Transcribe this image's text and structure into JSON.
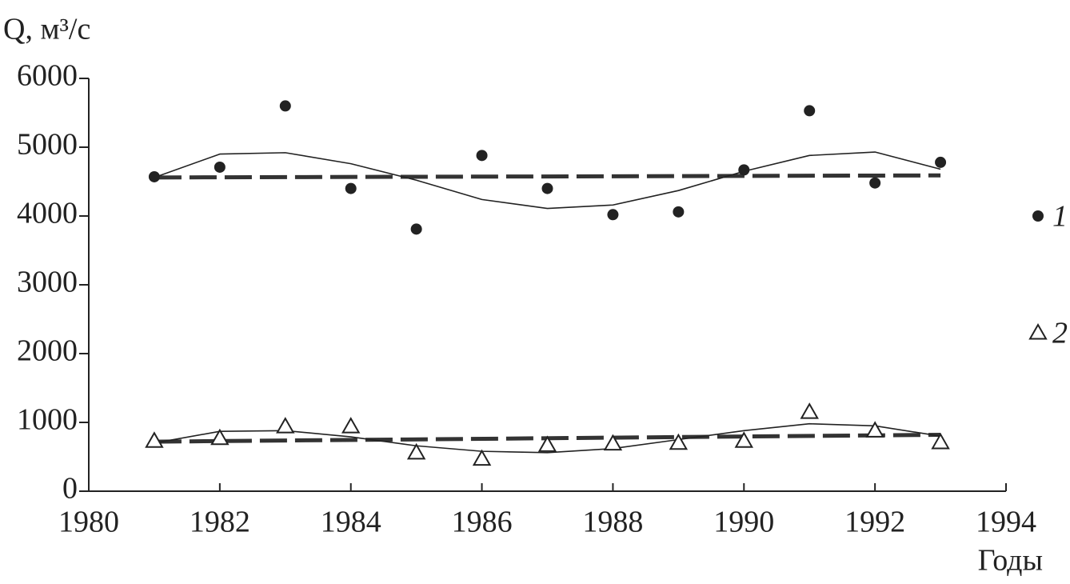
{
  "chart_data": {
    "type": "scatter",
    "y_label": "Q, м³/с",
    "x_label": "Годы",
    "x": [
      1981,
      1982,
      1983,
      1984,
      1985,
      1986,
      1987,
      1988,
      1989,
      1990,
      1991,
      1992,
      1993
    ],
    "series": [
      {
        "name": "1",
        "marker": "circle",
        "color": "#222222",
        "values": [
          4570,
          4710,
          5600,
          4400,
          3810,
          4880,
          4400,
          4020,
          4060,
          4670,
          5530,
          4480,
          4780
        ]
      },
      {
        "name": "2",
        "marker": "triangle",
        "color": "#222222",
        "values": [
          730,
          770,
          940,
          940,
          560,
          470,
          670,
          690,
          700,
          730,
          1150,
          880,
          710
        ]
      }
    ],
    "trends": [
      {
        "style": "dashed",
        "x": [
          1981,
          1993
        ],
        "values": [
          4560,
          4590
        ]
      },
      {
        "style": "dashed",
        "x": [
          1981,
          1993
        ],
        "values": [
          720,
          820
        ]
      },
      {
        "style": "solid",
        "x": [
          1981,
          1982,
          1983,
          1984,
          1985,
          1986,
          1987,
          1988,
          1989,
          1990,
          1991,
          1992,
          1993
        ],
        "values": [
          4560,
          4900,
          4920,
          4760,
          4520,
          4240,
          4110,
          4160,
          4370,
          4650,
          4880,
          4930,
          4680
        ]
      },
      {
        "style": "solid",
        "x": [
          1981,
          1982,
          1983,
          1984,
          1985,
          1986,
          1987,
          1988,
          1989,
          1990,
          1991,
          1992,
          1993
        ],
        "values": [
          700,
          870,
          880,
          790,
          660,
          580,
          560,
          620,
          750,
          880,
          980,
          950,
          800
        ]
      }
    ],
    "xlim": [
      1980,
      1994
    ],
    "xticks": [
      1980,
      1982,
      1984,
      1986,
      1988,
      1990,
      1992,
      1994
    ],
    "ylim": [
      0,
      6000
    ],
    "yticks": [
      0,
      1000,
      2000,
      3000,
      4000,
      5000,
      6000
    ],
    "grid": false
  }
}
